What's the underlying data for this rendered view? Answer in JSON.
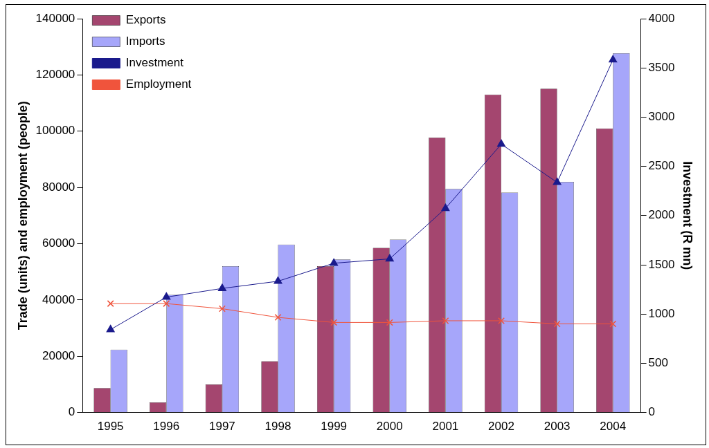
{
  "chart_data": {
    "type": "bar",
    "categories": [
      "1995",
      "1996",
      "1997",
      "1998",
      "1999",
      "2000",
      "2001",
      "2002",
      "2003",
      "2004"
    ],
    "series": [
      {
        "name": "Exports",
        "color": "#a4466f",
        "values": [
          8700,
          3600,
          10000,
          18200,
          52000,
          58500,
          97700,
          113000,
          115100,
          101000
        ]
      },
      {
        "name": "Imports",
        "color": "#a6a6fa",
        "values": [
          22300,
          41800,
          52000,
          59700,
          54400,
          61500,
          79500,
          78200,
          82000,
          127700
        ]
      },
      {
        "name": "Investment",
        "type": "line",
        "axis": "y2",
        "marker": "triangle",
        "color": "#1a1a8c",
        "values": [
          842,
          1172,
          1260,
          1333,
          1516,
          1560,
          2073,
          2725,
          2337,
          3582
        ]
      },
      {
        "name": "Employment",
        "type": "line",
        "marker": "cross",
        "color": "#f0543c",
        "values": [
          38700,
          38700,
          36900,
          33800,
          32000,
          32000,
          32600,
          32600,
          31500,
          31500
        ]
      }
    ],
    "ylabel": "Trade (units) and employment (people)",
    "y2label": "Investment (R mn)",
    "ylim": [
      0,
      140000
    ],
    "yticks": [
      0,
      20000,
      40000,
      60000,
      80000,
      100000,
      120000,
      140000
    ],
    "y2lim": [
      0,
      4000
    ],
    "y2ticks": [
      0,
      500,
      1000,
      1500,
      2000,
      2500,
      3000,
      3500,
      4000
    ],
    "grid": false,
    "legend": "top left"
  }
}
